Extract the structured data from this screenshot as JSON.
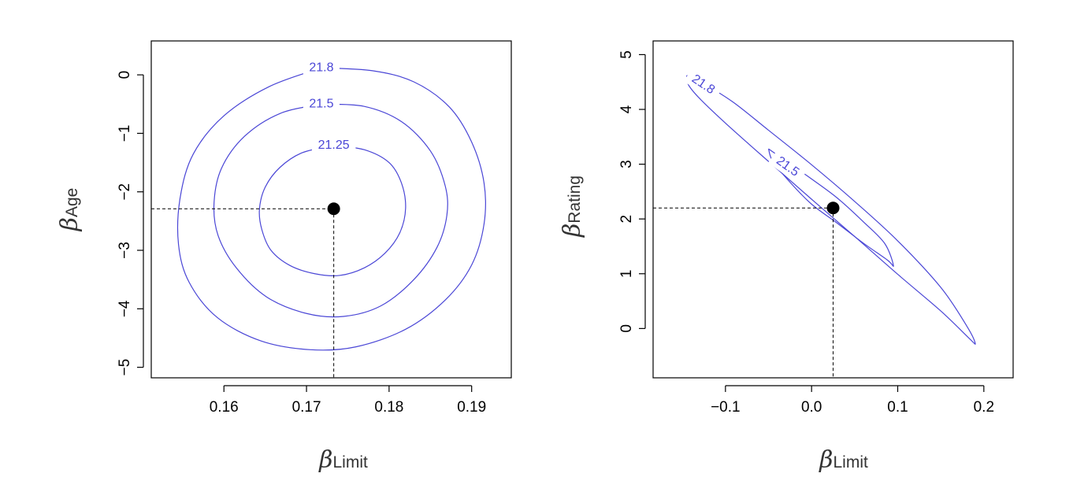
{
  "colors": {
    "contour": "#4a46d6",
    "axis": "#000000",
    "point": "#000000",
    "background": "#ffffff"
  },
  "chart_data": [
    {
      "type": "contour",
      "xlabel": {
        "symbol": "β",
        "subscript": "Limit"
      },
      "ylabel": {
        "symbol": "β",
        "subscript": "Age"
      },
      "xlim": [
        0.1512,
        0.1948
      ],
      "ylim": [
        -5.18,
        0.58
      ],
      "xticks": [
        0.16,
        0.17,
        0.18,
        0.19
      ],
      "xtick_labels": [
        "0.16",
        "0.17",
        "0.18",
        "0.19"
      ],
      "yticks": [
        0,
        -1,
        -2,
        -3,
        -4,
        -5
      ],
      "ytick_labels": [
        "0",
        "−1",
        "−2",
        "−3",
        "−4",
        "−5"
      ],
      "contours": [
        {
          "level": "21.25",
          "label_position": [
            0.1733,
            -1.21
          ],
          "points": [
            [
              0.1733,
              -1.21
            ],
            [
              0.177,
              -1.28
            ],
            [
              0.18,
              -1.5
            ],
            [
              0.1815,
              -1.85
            ],
            [
              0.182,
              -2.28
            ],
            [
              0.1813,
              -2.7
            ],
            [
              0.1795,
              -3.05
            ],
            [
              0.177,
              -3.3
            ],
            [
              0.174,
              -3.43
            ],
            [
              0.171,
              -3.4
            ],
            [
              0.168,
              -3.26
            ],
            [
              0.1657,
              -3.0
            ],
            [
              0.1646,
              -2.65
            ],
            [
              0.1643,
              -2.3
            ],
            [
              0.165,
              -1.92
            ],
            [
              0.1668,
              -1.58
            ],
            [
              0.1695,
              -1.33
            ],
            [
              0.1733,
              -1.21
            ]
          ]
        },
        {
          "level": "21.5",
          "label_position": [
            0.1718,
            -0.5
          ],
          "points": [
            [
              0.1718,
              -0.5
            ],
            [
              0.177,
              -0.54
            ],
            [
              0.1815,
              -0.8
            ],
            [
              0.185,
              -1.3
            ],
            [
              0.1868,
              -1.9
            ],
            [
              0.187,
              -2.4
            ],
            [
              0.1858,
              -2.95
            ],
            [
              0.183,
              -3.5
            ],
            [
              0.179,
              -3.95
            ],
            [
              0.1745,
              -4.13
            ],
            [
              0.17,
              -4.08
            ],
            [
              0.1652,
              -3.8
            ],
            [
              0.1615,
              -3.3
            ],
            [
              0.1593,
              -2.75
            ],
            [
              0.1588,
              -2.2
            ],
            [
              0.1597,
              -1.6
            ],
            [
              0.1625,
              -1.05
            ],
            [
              0.1668,
              -0.66
            ],
            [
              0.1718,
              -0.5
            ]
          ]
        },
        {
          "level": "21.8",
          "label_position": [
            0.1718,
            0.12
          ],
          "points": [
            [
              0.1718,
              0.12
            ],
            [
              0.178,
              0.07
            ],
            [
              0.183,
              -0.12
            ],
            [
              0.1873,
              -0.55
            ],
            [
              0.19,
              -1.15
            ],
            [
              0.1915,
              -1.85
            ],
            [
              0.1915,
              -2.55
            ],
            [
              0.19,
              -3.25
            ],
            [
              0.1868,
              -3.85
            ],
            [
              0.182,
              -4.35
            ],
            [
              0.176,
              -4.65
            ],
            [
              0.1705,
              -4.7
            ],
            [
              0.1645,
              -4.55
            ],
            [
              0.1592,
              -4.15
            ],
            [
              0.1558,
              -3.55
            ],
            [
              0.1545,
              -2.9
            ],
            [
              0.1547,
              -2.1
            ],
            [
              0.1563,
              -1.35
            ],
            [
              0.16,
              -0.7
            ],
            [
              0.1655,
              -0.2
            ],
            [
              0.1718,
              0.12
            ]
          ]
        }
      ],
      "point": {
        "x": 0.1733,
        "y": -2.29
      },
      "reference_lines": {
        "x": 0.1733,
        "y": -2.29
      }
    },
    {
      "type": "contour",
      "xlabel": {
        "symbol": "β",
        "subscript": "Limit"
      },
      "ylabel": {
        "symbol": "β",
        "subscript": "Rating"
      },
      "xlim": [
        -0.184,
        0.234
      ],
      "ylim": [
        -0.9,
        5.25
      ],
      "xticks": [
        -0.1,
        0.0,
        0.1,
        0.2
      ],
      "xtick_labels": [
        "−0.1",
        "0.0",
        "0.1",
        "0.2"
      ],
      "yticks": [
        0,
        1,
        2,
        3,
        4,
        5
      ],
      "ytick_labels": [
        "0",
        "1",
        "2",
        "3",
        "4",
        "5"
      ],
      "contours": [
        {
          "level": "21.8",
          "label_position": [
            -0.126,
            4.45
          ],
          "points": [
            [
              -0.145,
              4.62
            ],
            [
              -0.12,
              4.42
            ],
            [
              -0.09,
              4.12
            ],
            [
              -0.05,
              3.62
            ],
            [
              0.0,
              2.99
            ],
            [
              0.05,
              2.32
            ],
            [
              0.1,
              1.6
            ],
            [
              0.15,
              0.75
            ],
            [
              0.18,
              0.05
            ],
            [
              0.19,
              -0.27
            ],
            [
              0.183,
              -0.18
            ],
            [
              0.15,
              0.32
            ],
            [
              0.1,
              0.99
            ],
            [
              0.05,
              1.68
            ],
            [
              0.0,
              2.36
            ],
            [
              -0.05,
              3.05
            ],
            [
              -0.1,
              3.75
            ],
            [
              -0.13,
              4.2
            ],
            [
              -0.143,
              4.45
            ],
            [
              -0.145,
              4.62
            ]
          ]
        },
        {
          "level": "21.5",
          "label_position": [
            -0.028,
            2.95
          ],
          "points": [
            [
              -0.05,
              3.28
            ],
            [
              -0.02,
              2.95
            ],
            [
              0.0,
              2.73
            ],
            [
              0.03,
              2.38
            ],
            [
              0.06,
              1.95
            ],
            [
              0.085,
              1.55
            ],
            [
              0.095,
              1.15
            ],
            [
              0.088,
              1.25
            ],
            [
              0.06,
              1.56
            ],
            [
              0.03,
              1.92
            ],
            [
              0.0,
              2.27
            ],
            [
              -0.025,
              2.67
            ],
            [
              -0.045,
              3.05
            ],
            [
              -0.05,
              3.28
            ]
          ]
        }
      ],
      "point": {
        "x": 0.025,
        "y": 2.2
      },
      "reference_lines": {
        "x": 0.025,
        "y": 2.2
      }
    }
  ]
}
